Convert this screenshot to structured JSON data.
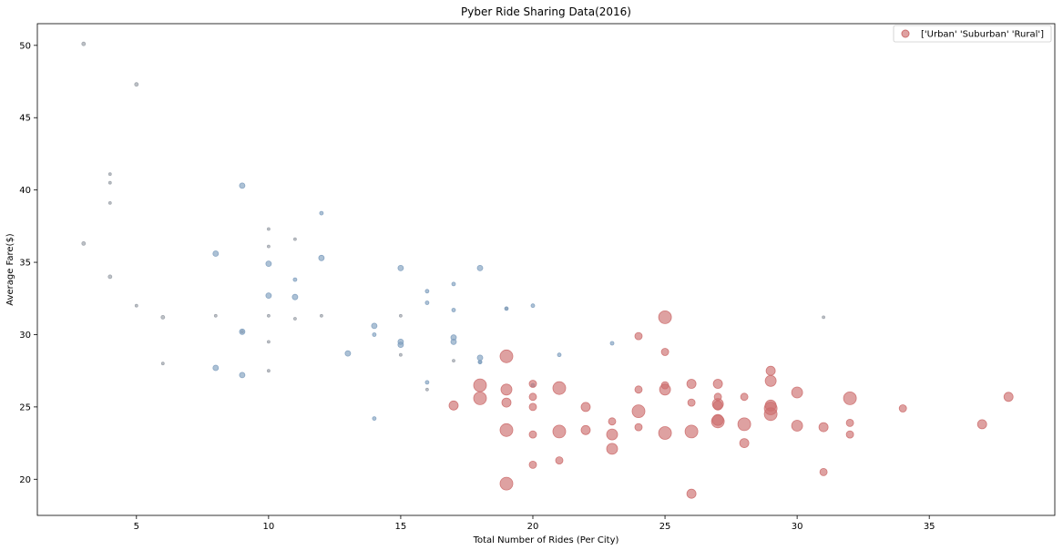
{
  "chart_data": {
    "type": "scatter",
    "title": "Pyber Ride Sharing Data(2016)",
    "xlabel": "Total Number of Rides (Per City)",
    "ylabel": "Average Fare($)",
    "xlim": [
      1.25,
      39.75
    ],
    "ylim": [
      17.5,
      51.5
    ],
    "xticks": [
      5,
      10,
      15,
      20,
      25,
      30,
      35
    ],
    "yticks": [
      20,
      25,
      30,
      35,
      40,
      45,
      50
    ],
    "grid": false,
    "legend": {
      "entries": [
        "['Urban' 'Suburban' 'Rural']"
      ],
      "position": "top-right"
    },
    "colors": {
      "urban": "#cd6f6f",
      "suburban": "#7f9fbf",
      "rural": "#9aa0a8"
    },
    "series": [
      {
        "group": "urban",
        "points": [
          [
            17,
            25.1
          ],
          [
            18,
            26.5
          ],
          [
            18,
            25.6
          ],
          [
            19,
            28.5
          ],
          [
            19,
            26.2
          ],
          [
            19,
            25.3
          ],
          [
            19,
            23.4
          ],
          [
            19,
            19.7
          ],
          [
            20,
            26.6
          ],
          [
            20,
            25.7
          ],
          [
            20,
            25.0
          ],
          [
            20,
            23.1
          ],
          [
            20,
            21.0
          ],
          [
            21,
            26.3
          ],
          [
            21,
            23.3
          ],
          [
            21,
            21.3
          ],
          [
            22,
            25.0
          ],
          [
            22,
            23.4
          ],
          [
            23,
            24.0
          ],
          [
            23,
            23.1
          ],
          [
            23,
            22.1
          ],
          [
            24,
            29.9
          ],
          [
            24,
            26.2
          ],
          [
            24,
            24.7
          ],
          [
            24,
            23.6
          ],
          [
            25,
            31.2
          ],
          [
            25,
            28.8
          ],
          [
            25,
            26.5
          ],
          [
            25,
            26.2
          ],
          [
            25,
            23.2
          ],
          [
            26,
            26.6
          ],
          [
            26,
            25.3
          ],
          [
            26,
            23.3
          ],
          [
            26,
            19.0
          ],
          [
            27,
            26.6
          ],
          [
            27,
            25.7
          ],
          [
            27,
            25.2
          ],
          [
            27,
            25.1
          ],
          [
            27,
            24.1
          ],
          [
            27,
            24.0
          ],
          [
            28,
            25.7
          ],
          [
            28,
            23.8
          ],
          [
            28,
            22.5
          ],
          [
            29,
            27.5
          ],
          [
            29,
            26.8
          ],
          [
            29,
            25.1
          ],
          [
            29,
            24.9
          ],
          [
            29,
            24.5
          ],
          [
            30,
            26.0
          ],
          [
            30,
            23.7
          ],
          [
            31,
            23.6
          ],
          [
            31,
            20.5
          ],
          [
            32,
            25.6
          ],
          [
            32,
            23.9
          ],
          [
            32,
            23.1
          ],
          [
            34,
            24.9
          ],
          [
            37,
            23.8
          ],
          [
            38,
            25.7
          ]
        ],
        "sizes": [
          5,
          7,
          7,
          7,
          6,
          5,
          7,
          7,
          4,
          4,
          4,
          4,
          4,
          7,
          7,
          4,
          5,
          5,
          4,
          6,
          6,
          4,
          4,
          7,
          4,
          7,
          4,
          4,
          6,
          7,
          5,
          4,
          7,
          5,
          5,
          4,
          6,
          5,
          6,
          7,
          4,
          7,
          5,
          5,
          6,
          6,
          7,
          7,
          6,
          6,
          5,
          4,
          7,
          4,
          4,
          4,
          5,
          5
        ]
      },
      {
        "group": "suburban",
        "points": [
          [
            9,
            40.3
          ],
          [
            8,
            35.6
          ],
          [
            8,
            27.7
          ],
          [
            9,
            30.2
          ],
          [
            9,
            27.2
          ],
          [
            10,
            34.9
          ],
          [
            10,
            32.7
          ],
          [
            11,
            32.6
          ],
          [
            11,
            33.8
          ],
          [
            12,
            38.4
          ],
          [
            12,
            35.3
          ],
          [
            13,
            28.7
          ],
          [
            14,
            30.6
          ],
          [
            14,
            30.0
          ],
          [
            14,
            24.2
          ],
          [
            15,
            34.6
          ],
          [
            15,
            29.5
          ],
          [
            15,
            29.3
          ],
          [
            16,
            33.0
          ],
          [
            16,
            32.2
          ],
          [
            16,
            26.7
          ],
          [
            17,
            33.5
          ],
          [
            17,
            31.7
          ],
          [
            17,
            29.8
          ],
          [
            17,
            29.5
          ],
          [
            18,
            34.6
          ],
          [
            18,
            28.4
          ],
          [
            18,
            28.1
          ],
          [
            18,
            28.1
          ],
          [
            19,
            31.8
          ],
          [
            20,
            32.0
          ],
          [
            20,
            26.5
          ],
          [
            21,
            28.6
          ],
          [
            23,
            29.4
          ]
        ],
        "sizes": [
          3,
          3,
          3,
          3,
          3,
          3,
          3,
          3,
          2,
          2,
          3,
          3,
          3,
          2,
          2,
          3,
          3,
          3,
          2,
          2,
          2,
          2,
          2,
          3,
          3,
          3,
          3,
          2,
          2,
          2,
          2,
          2,
          2,
          2
        ]
      },
      {
        "group": "rural",
        "points": [
          [
            3,
            50.1
          ],
          [
            3,
            36.3
          ],
          [
            4,
            41.1
          ],
          [
            4,
            40.5
          ],
          [
            4,
            39.1
          ],
          [
            4,
            34.0
          ],
          [
            5,
            47.3
          ],
          [
            5,
            32.0
          ],
          [
            6,
            31.2
          ],
          [
            6,
            28.0
          ],
          [
            8,
            31.3
          ],
          [
            9,
            30.2
          ],
          [
            10,
            37.3
          ],
          [
            10,
            36.1
          ],
          [
            10,
            31.3
          ],
          [
            10,
            29.5
          ],
          [
            10,
            27.5
          ],
          [
            11,
            36.6
          ],
          [
            11,
            31.1
          ],
          [
            12,
            31.3
          ],
          [
            15,
            31.3
          ],
          [
            15,
            28.6
          ],
          [
            16,
            26.2
          ],
          [
            17,
            28.2
          ],
          [
            19,
            31.8
          ],
          [
            31,
            31.2
          ]
        ],
        "sizes": [
          2,
          2,
          1.5,
          1.5,
          1.5,
          2,
          2,
          1.5,
          2,
          1.5,
          1.5,
          1.5,
          1.5,
          1.5,
          1.5,
          1.5,
          1.5,
          1.5,
          1.5,
          1.5,
          1.5,
          1.5,
          1.5,
          1.5,
          1.5,
          1.5
        ]
      }
    ]
  }
}
